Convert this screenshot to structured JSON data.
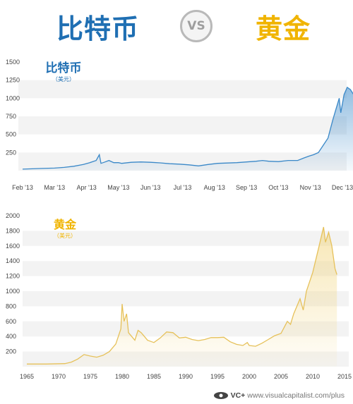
{
  "header": {
    "left_title": "比特币",
    "vs_label": "VS",
    "right_title": "黄金"
  },
  "footer": {
    "brand": "VC+",
    "url": "www.visualcapitalist.com/plus"
  },
  "chart_data": [
    {
      "type": "area",
      "title": "比特币",
      "subtitle": "（美元）",
      "xlabel": "",
      "ylabel": "",
      "x_ticks": [
        "Feb '13",
        "Mar '13",
        "Apr '13",
        "May '13",
        "Jun '13",
        "Jul '13",
        "Aug '13",
        "Sep '13",
        "Oct '13",
        "Nov '13",
        "Dec '13"
      ],
      "y_ticks": [
        250,
        500,
        750,
        1000,
        1250,
        1500
      ],
      "ylim": [
        0,
        1500
      ],
      "grid": "horizontal bands",
      "colors": {
        "line": "#3a88c8",
        "fill": "#3a88c8",
        "title": "#1f6fb3"
      },
      "series": [
        {
          "x": [
            0,
            0.3,
            0.6,
            0.9,
            1.0,
            1.3,
            1.6,
            1.9,
            2.1,
            2.3,
            2.4,
            2.45,
            2.55,
            2.7,
            2.85,
            3.0,
            3.1,
            3.2,
            3.4,
            3.7,
            4.0,
            4.3,
            4.6,
            4.9,
            5.2,
            5.5,
            5.8,
            6.1,
            6.4,
            6.7,
            7.0,
            7.3,
            7.5,
            7.7,
            8.0,
            8.3,
            8.6,
            8.8,
            8.95,
            9.1,
            9.25,
            9.4,
            9.55,
            9.7,
            9.8,
            9.9,
            9.95,
            10.05,
            10.15,
            10.25,
            10.35,
            10.45,
            10.55,
            10.6
          ],
          "y": [
            20,
            25,
            30,
            34,
            35,
            45,
            60,
            85,
            110,
            140,
            220,
            100,
            115,
            140,
            110,
            110,
            100,
            105,
            115,
            120,
            115,
            107,
            95,
            90,
            80,
            65,
            85,
            100,
            105,
            110,
            120,
            130,
            140,
            130,
            125,
            140,
            140,
            175,
            200,
            220,
            250,
            350,
            450,
            700,
            850,
            1000,
            800,
            1050,
            1150,
            1120,
            1050,
            950,
            700,
            1000
          ]
        }
      ]
    },
    {
      "type": "area",
      "title": "黄金",
      "subtitle": "（美元）",
      "xlabel": "",
      "ylabel": "",
      "x_ticks": [
        1965,
        1970,
        1975,
        1980,
        1985,
        1990,
        1995,
        2000,
        2005,
        2010,
        2015
      ],
      "y_ticks": [
        200,
        400,
        600,
        800,
        1000,
        1200,
        1400,
        1600,
        1800,
        2000
      ],
      "xlim": [
        1965,
        2015
      ],
      "ylim": [
        0,
        2000
      ],
      "grid": "horizontal bands",
      "colors": {
        "line": "#e6c15a",
        "fill": "#f2d47a",
        "title": "#f0b400"
      },
      "series": [
        {
          "x": [
            1965,
            1968,
            1971,
            1972,
            1973,
            1974,
            1975,
            1976,
            1977,
            1978,
            1979,
            1979.8,
            1980,
            1980.3,
            1980.7,
            1981,
            1981.5,
            1982,
            1982.5,
            1983,
            1983.5,
            1984,
            1985,
            1986,
            1987,
            1988,
            1989,
            1990,
            1991,
            1992,
            1993,
            1994,
            1995,
            1996,
            1997,
            1998,
            1999,
            1999.7,
            2000,
            2001,
            2002,
            2003,
            2004,
            2005,
            2006,
            2006.5,
            2007,
            2008,
            2008.5,
            2009,
            2010,
            2011,
            2011.7,
            2012,
            2012.5,
            2013,
            2013.5,
            2013.8
          ],
          "y": [
            35,
            35,
            40,
            60,
            100,
            160,
            140,
            125,
            150,
            200,
            300,
            500,
            830,
            600,
            700,
            450,
            400,
            350,
            480,
            450,
            400,
            350,
            320,
            380,
            460,
            450,
            380,
            390,
            360,
            345,
            360,
            385,
            385,
            390,
            330,
            295,
            280,
            320,
            280,
            270,
            310,
            360,
            410,
            440,
            600,
            560,
            700,
            900,
            750,
            1000,
            1250,
            1600,
            1850,
            1650,
            1780,
            1600,
            1300,
            1220
          ]
        }
      ]
    }
  ]
}
